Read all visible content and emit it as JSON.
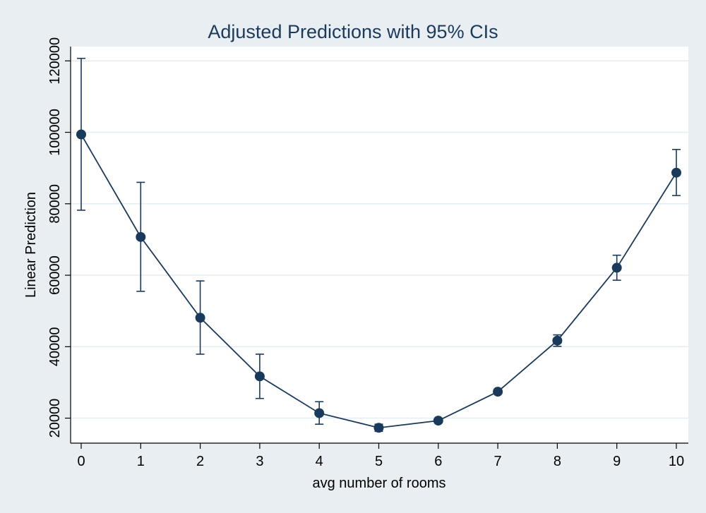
{
  "chart_data": {
    "type": "line",
    "title": "Adjusted Predictions with 95% CIs",
    "xlabel": "avg number of rooms",
    "ylabel": "Linear Prediction",
    "x": [
      0,
      1,
      2,
      3,
      4,
      5,
      6,
      7,
      8,
      9,
      10
    ],
    "series": [
      {
        "values": [
          99400,
          70700,
          48100,
          31700,
          21400,
          17300,
          19300,
          27400,
          41700,
          62100,
          88700
        ],
        "ci_lower": [
          78200,
          55500,
          37900,
          25500,
          18300,
          16300,
          18900,
          26900,
          40100,
          58600,
          82300
        ],
        "ci_upper": [
          120700,
          86000,
          58400,
          37900,
          24600,
          18300,
          19700,
          27900,
          43300,
          65600,
          95200
        ]
      }
    ],
    "xlim": [
      0,
      10
    ],
    "ylim": [
      13000,
      124000
    ],
    "xticks": [
      0,
      1,
      2,
      3,
      4,
      5,
      6,
      7,
      8,
      9,
      10
    ],
    "yticks": [
      20000,
      40000,
      60000,
      80000,
      100000,
      120000
    ],
    "grid": true,
    "colors": {
      "background": "#e8eef1",
      "plot_background": "#ffffff",
      "series": "#1a3a5c",
      "grid": "#e6edf1",
      "title": "#1c3a5b"
    }
  }
}
